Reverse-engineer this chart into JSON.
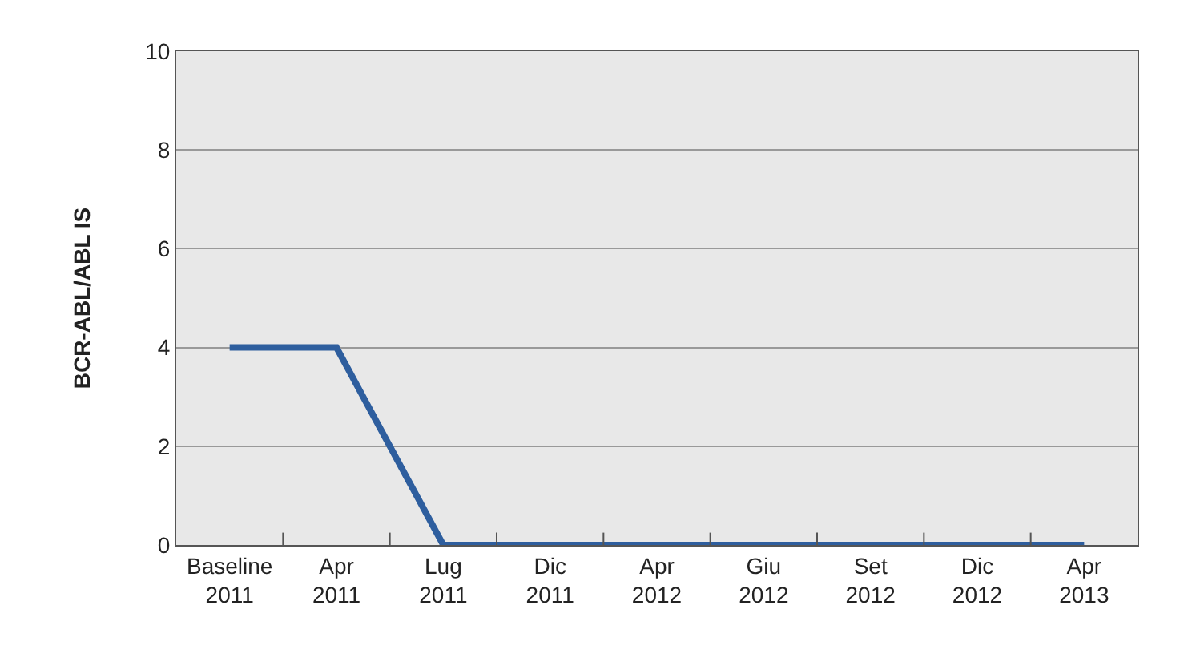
{
  "chart_data": {
    "type": "line",
    "ylabel": "BCR-ABL/ABL IS",
    "categories": [
      "Baseline\n2011",
      "Apr\n2011",
      "Lug\n2011",
      "Dic\n2011",
      "Apr\n2012",
      "Giu\n2012",
      "Set\n2012",
      "Dic\n2012",
      "Apr\n2013"
    ],
    "series": [
      {
        "color": "#2e5e9e",
        "values": [
          4,
          4,
          0,
          0,
          0,
          0,
          0,
          0,
          0
        ]
      }
    ],
    "ylim": [
      0,
      10
    ],
    "yticks": [
      0,
      2,
      4,
      6,
      8,
      10
    ],
    "grid": "y",
    "marker": "none",
    "line_style": "solid"
  }
}
